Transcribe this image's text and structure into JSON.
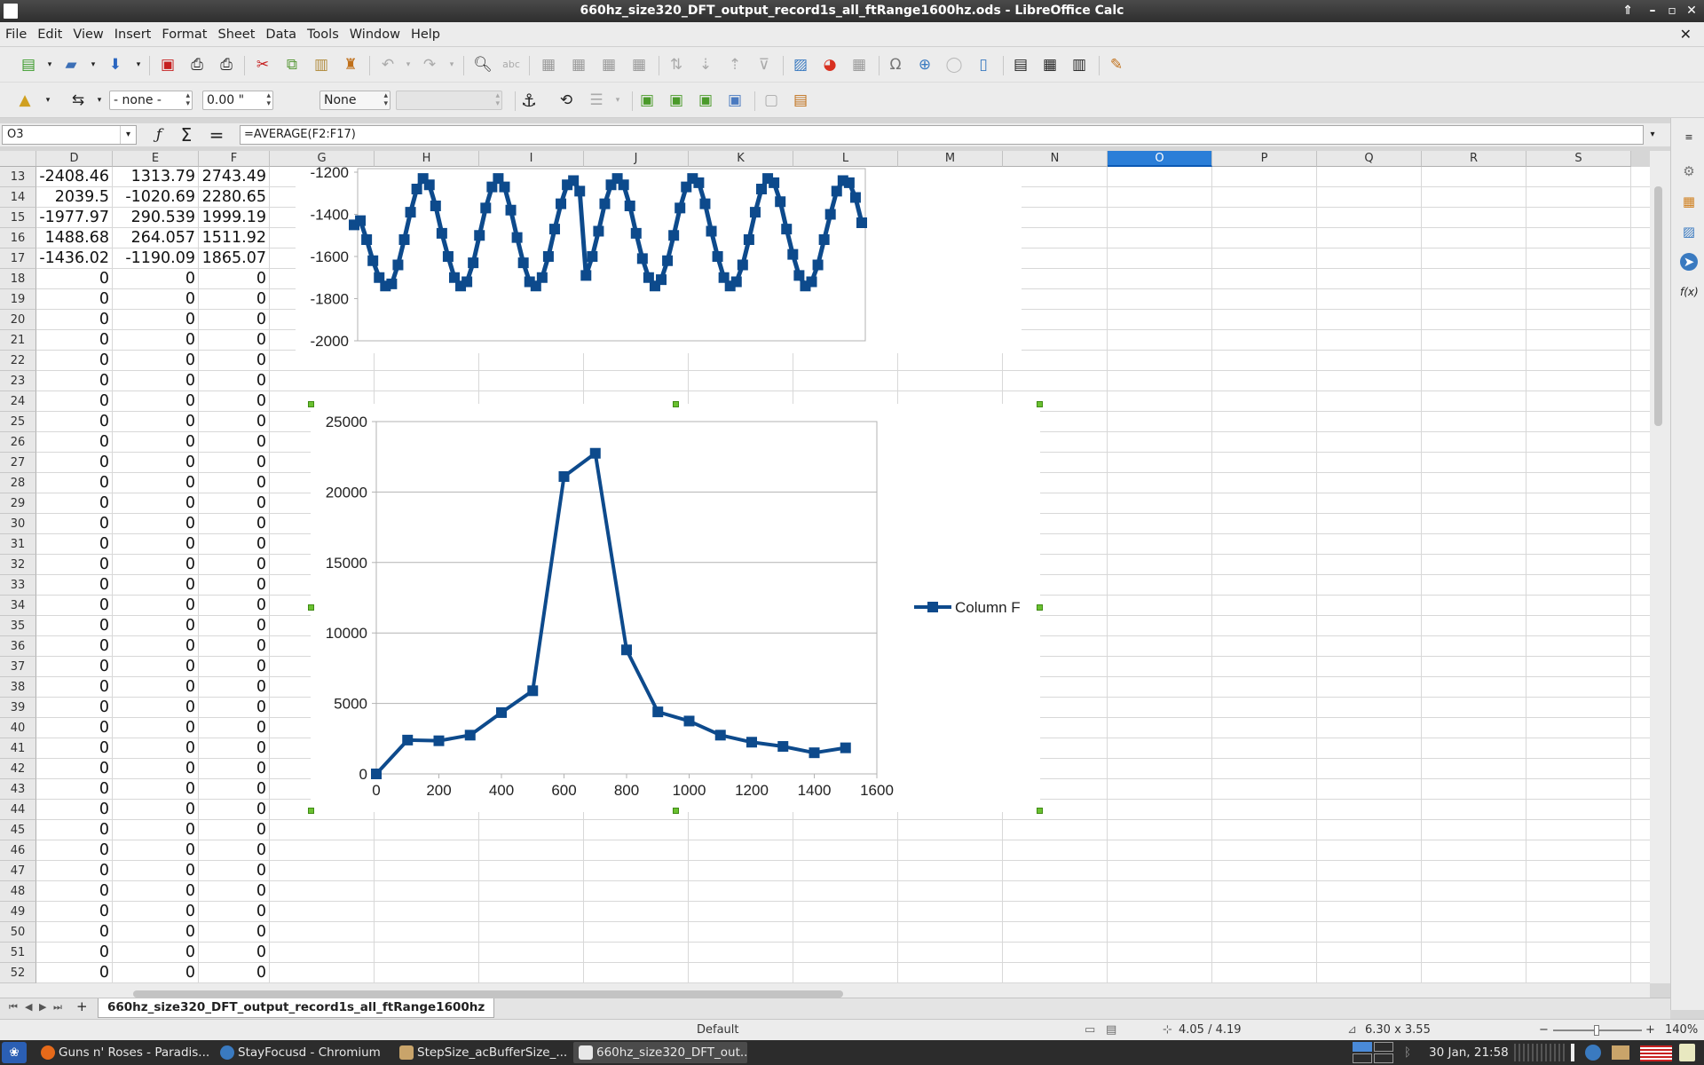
{
  "window": {
    "title": "660hz_size320_DFT_output_record1s_all_ftRange1600hz.ods - LibreOffice Calc"
  },
  "menu": [
    "File",
    "Edit",
    "View",
    "Insert",
    "Format",
    "Sheet",
    "Data",
    "Tools",
    "Window",
    "Help"
  ],
  "toolbar2": {
    "line_style": "- none -",
    "line_width": "0.00 \"",
    "area_style": "None"
  },
  "formula_bar": {
    "name_box": "O3",
    "formula": "=AVERAGE(F2:F17)"
  },
  "columns": [
    "D",
    "E",
    "F",
    "G",
    "H",
    "I",
    "J",
    "K",
    "L",
    "M",
    "N",
    "O",
    "P",
    "Q",
    "R",
    "S"
  ],
  "selected_column": "O",
  "rows": [
    {
      "n": "13",
      "d": "-2408.46",
      "e": "1313.79",
      "f": "2743.49"
    },
    {
      "n": "14",
      "d": "2039.5",
      "e": "-1020.69",
      "f": "2280.65"
    },
    {
      "n": "15",
      "d": "-1977.97",
      "e": "290.539",
      "f": "1999.19"
    },
    {
      "n": "16",
      "d": "1488.68",
      "e": "264.057",
      "f": "1511.92"
    },
    {
      "n": "17",
      "d": "-1436.02",
      "e": "-1190.09",
      "f": "1865.07"
    },
    {
      "n": "18",
      "d": "0",
      "e": "0",
      "f": "0"
    },
    {
      "n": "19",
      "d": "0",
      "e": "0",
      "f": "0"
    },
    {
      "n": "20",
      "d": "0",
      "e": "0",
      "f": "0"
    },
    {
      "n": "21",
      "d": "0",
      "e": "0",
      "f": "0"
    },
    {
      "n": "22",
      "d": "0",
      "e": "0",
      "f": "0"
    },
    {
      "n": "23",
      "d": "0",
      "e": "0",
      "f": "0"
    },
    {
      "n": "24",
      "d": "0",
      "e": "0",
      "f": "0"
    },
    {
      "n": "25",
      "d": "0",
      "e": "0",
      "f": "0"
    },
    {
      "n": "26",
      "d": "0",
      "e": "0",
      "f": "0"
    },
    {
      "n": "27",
      "d": "0",
      "e": "0",
      "f": "0"
    },
    {
      "n": "28",
      "d": "0",
      "e": "0",
      "f": "0"
    },
    {
      "n": "29",
      "d": "0",
      "e": "0",
      "f": "0"
    },
    {
      "n": "30",
      "d": "0",
      "e": "0",
      "f": "0"
    },
    {
      "n": "31",
      "d": "0",
      "e": "0",
      "f": "0"
    },
    {
      "n": "32",
      "d": "0",
      "e": "0",
      "f": "0"
    },
    {
      "n": "33",
      "d": "0",
      "e": "0",
      "f": "0"
    },
    {
      "n": "34",
      "d": "0",
      "e": "0",
      "f": "0"
    },
    {
      "n": "35",
      "d": "0",
      "e": "0",
      "f": "0"
    },
    {
      "n": "36",
      "d": "0",
      "e": "0",
      "f": "0"
    },
    {
      "n": "37",
      "d": "0",
      "e": "0",
      "f": "0"
    },
    {
      "n": "38",
      "d": "0",
      "e": "0",
      "f": "0"
    },
    {
      "n": "39",
      "d": "0",
      "e": "0",
      "f": "0"
    },
    {
      "n": "40",
      "d": "0",
      "e": "0",
      "f": "0"
    },
    {
      "n": "41",
      "d": "0",
      "e": "0",
      "f": "0"
    },
    {
      "n": "42",
      "d": "0",
      "e": "0",
      "f": "0"
    },
    {
      "n": "43",
      "d": "0",
      "e": "0",
      "f": "0"
    },
    {
      "n": "44",
      "d": "0",
      "e": "0",
      "f": "0"
    },
    {
      "n": "45",
      "d": "0",
      "e": "0",
      "f": "0"
    },
    {
      "n": "46",
      "d": "0",
      "e": "0",
      "f": "0"
    },
    {
      "n": "47",
      "d": "0",
      "e": "0",
      "f": "0"
    },
    {
      "n": "48",
      "d": "0",
      "e": "0",
      "f": "0"
    },
    {
      "n": "49",
      "d": "0",
      "e": "0",
      "f": "0"
    },
    {
      "n": "50",
      "d": "0",
      "e": "0",
      "f": "0"
    },
    {
      "n": "51",
      "d": "0",
      "e": "0",
      "f": "0"
    },
    {
      "n": "52",
      "d": "0",
      "e": "0",
      "f": "0"
    }
  ],
  "sheet_tab": "660hz_size320_DFT_output_record1s_all_ftRange1600hz",
  "status": {
    "page_style": "Default",
    "position": "4.05 / 4.19",
    "size": "6.30 x 3.55",
    "zoom": "140%"
  },
  "taskbar": {
    "tasks": [
      "Guns n' Roses - Paradis...",
      "StayFocusd - Chromium",
      "StepSize_acBufferSize_...",
      "660hz_size320_DFT_out..."
    ],
    "clock": "30 Jan, 21:58"
  },
  "colors": {
    "series": "#0d4a8c",
    "selection": "#2a7ed8",
    "handle": "#6ac130"
  },
  "chart_data": [
    {
      "type": "line",
      "title": "",
      "ylim": [
        -2000,
        -1200
      ],
      "y_ticks": [
        "-1200",
        "-1400",
        "-1600",
        "-1800",
        "-2000"
      ],
      "series": [
        {
          "values": [
            -1450,
            -1430,
            -1520,
            -1620,
            -1700,
            -1740,
            -1730,
            -1640,
            -1520,
            -1390,
            -1280,
            -1230,
            -1260,
            -1360,
            -1490,
            -1600,
            -1700,
            -1740,
            -1720,
            -1630,
            -1500,
            -1370,
            -1270,
            -1230,
            -1270,
            -1380,
            -1510,
            -1630,
            -1720,
            -1740,
            -1700,
            -1600,
            -1470,
            -1350,
            -1260,
            -1240,
            -1290,
            -1690,
            -1600,
            -1480,
            -1350,
            -1260,
            -1230,
            -1260,
            -1360,
            -1490,
            -1610,
            -1700,
            -1740,
            -1710,
            -1620,
            -1500,
            -1370,
            -1270,
            -1230,
            -1250,
            -1350,
            -1480,
            -1600,
            -1700,
            -1740,
            -1720,
            -1640,
            -1520,
            -1390,
            -1280,
            -1230,
            -1250,
            -1340,
            -1470,
            -1590,
            -1690,
            -1740,
            -1720,
            -1640,
            -1520,
            -1400,
            -1290,
            -1240,
            -1250,
            -1320,
            -1440
          ]
        }
      ]
    },
    {
      "type": "line",
      "title": "",
      "xlim": [
        0,
        1600
      ],
      "ylim": [
        0,
        25000
      ],
      "x_ticks": [
        "0",
        "200",
        "400",
        "600",
        "800",
        "1000",
        "1200",
        "1400",
        "1600"
      ],
      "y_ticks": [
        "25000",
        "20000",
        "15000",
        "10000",
        "5000",
        "0"
      ],
      "legend": "right",
      "series": [
        {
          "name": "Column F",
          "x": [
            0,
            100,
            200,
            300,
            400,
            500,
            600,
            700,
            800,
            900,
            1000,
            1100,
            1200,
            1300,
            1400,
            1500
          ],
          "values": [
            0,
            2400,
            2350,
            2750,
            4350,
            5900,
            21100,
            22750,
            8800,
            4400,
            3750,
            2750,
            2250,
            1950,
            1500,
            1850
          ]
        }
      ]
    }
  ]
}
